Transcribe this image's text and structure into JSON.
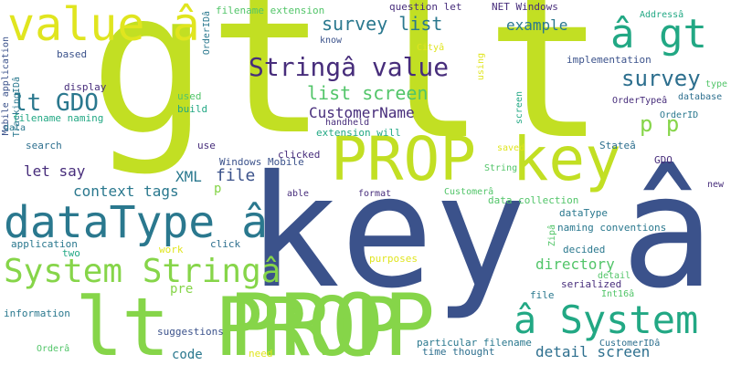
{
  "colors": {
    "background": "#ffffff",
    "lime": "#c2df23",
    "green": "#86d549",
    "teal": "#2a788e",
    "navy": "#3b528b",
    "purple": "#472d7b",
    "mint": "#52c569",
    "aqua": "#22a884",
    "yellow": "#e0e51f",
    "blue": "#2d6f8e"
  },
  "words": [
    {
      "text": "gt"
    },
    {
      "text": "lt"
    },
    {
      "text": "key â"
    },
    {
      "text": "PROP"
    },
    {
      "text": "lt PROP"
    },
    {
      "text": "value â"
    },
    {
      "text": "PROP key"
    },
    {
      "text": "â gt"
    },
    {
      "text": "dataType â"
    },
    {
      "text": "System Stringâ"
    },
    {
      "text": "â System"
    },
    {
      "text": "Stringâ value"
    },
    {
      "text": "survey list"
    },
    {
      "text": "lt GDO"
    },
    {
      "text": "survey"
    },
    {
      "text": "list screen"
    },
    {
      "text": "p p"
    },
    {
      "text": "CustomerName"
    },
    {
      "text": "file"
    },
    {
      "text": "XML"
    },
    {
      "text": "context tags"
    },
    {
      "text": "let say"
    },
    {
      "text": "directory"
    },
    {
      "text": "detail screen"
    },
    {
      "text": "example"
    },
    {
      "text": "code"
    },
    {
      "text": "pre"
    },
    {
      "text": "p"
    },
    {
      "text": "filename extension"
    },
    {
      "text": "question let"
    },
    {
      "text": "NET Windows"
    },
    {
      "text": "Addressâ"
    },
    {
      "text": "OrderIDâ"
    },
    {
      "text": "Cityâ"
    },
    {
      "text": "know"
    },
    {
      "text": "based"
    },
    {
      "text": "type"
    },
    {
      "text": "implementation"
    },
    {
      "text": "Mobile application"
    },
    {
      "text": "TrackingIDâ"
    },
    {
      "text": "display"
    },
    {
      "text": "used"
    },
    {
      "text": "using"
    },
    {
      "text": "build"
    },
    {
      "text": "OrderTypeâ"
    },
    {
      "text": "database"
    },
    {
      "text": "OrderID"
    },
    {
      "text": "filename naming"
    },
    {
      "text": "extension will"
    },
    {
      "text": "handheld"
    },
    {
      "text": "screen"
    },
    {
      "text": "search"
    },
    {
      "text": "data"
    },
    {
      "text": "use"
    },
    {
      "text": "clicked"
    },
    {
      "text": "saved"
    },
    {
      "text": "Stateâ"
    },
    {
      "text": "Windows Mobile"
    },
    {
      "text": "GDO"
    },
    {
      "text": "String"
    },
    {
      "text": "able"
    },
    {
      "text": "format"
    },
    {
      "text": "Customerâ"
    },
    {
      "text": "new"
    },
    {
      "text": "data collection"
    },
    {
      "text": "dataType"
    },
    {
      "text": "application"
    },
    {
      "text": "naming conventions"
    },
    {
      "text": "work"
    },
    {
      "text": "click"
    },
    {
      "text": "Zipâ"
    },
    {
      "text": "decided"
    },
    {
      "text": "two"
    },
    {
      "text": "purposes"
    },
    {
      "text": "detail"
    },
    {
      "text": "serialized"
    },
    {
      "text": "file"
    },
    {
      "text": "Int16â"
    },
    {
      "text": "information"
    },
    {
      "text": "suggestions"
    },
    {
      "text": "particular filename"
    },
    {
      "text": "CustomerIDâ"
    },
    {
      "text": "Orderâ"
    },
    {
      "text": "need"
    },
    {
      "text": "time thought"
    }
  ]
}
